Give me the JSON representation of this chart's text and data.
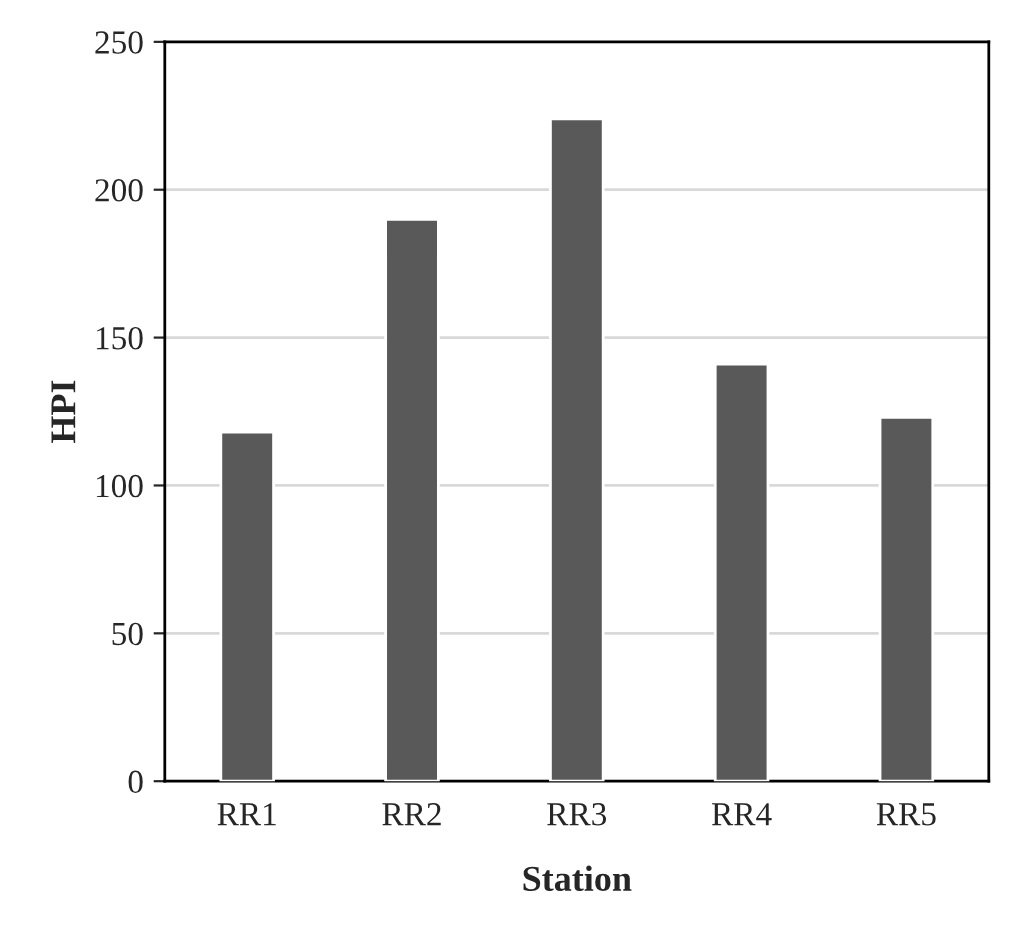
{
  "chart_data": {
    "type": "bar",
    "xlabel": "Station",
    "ylabel": "HPI",
    "categories": [
      "RR1",
      "RR2",
      "RR3",
      "RR4",
      "RR5"
    ],
    "values": [
      118,
      190,
      224,
      141,
      123
    ],
    "color": "#595959",
    "ylim": [
      0,
      250
    ],
    "yticks": [
      0,
      50,
      100,
      150,
      200,
      250
    ],
    "grid": "y",
    "legend": false
  }
}
